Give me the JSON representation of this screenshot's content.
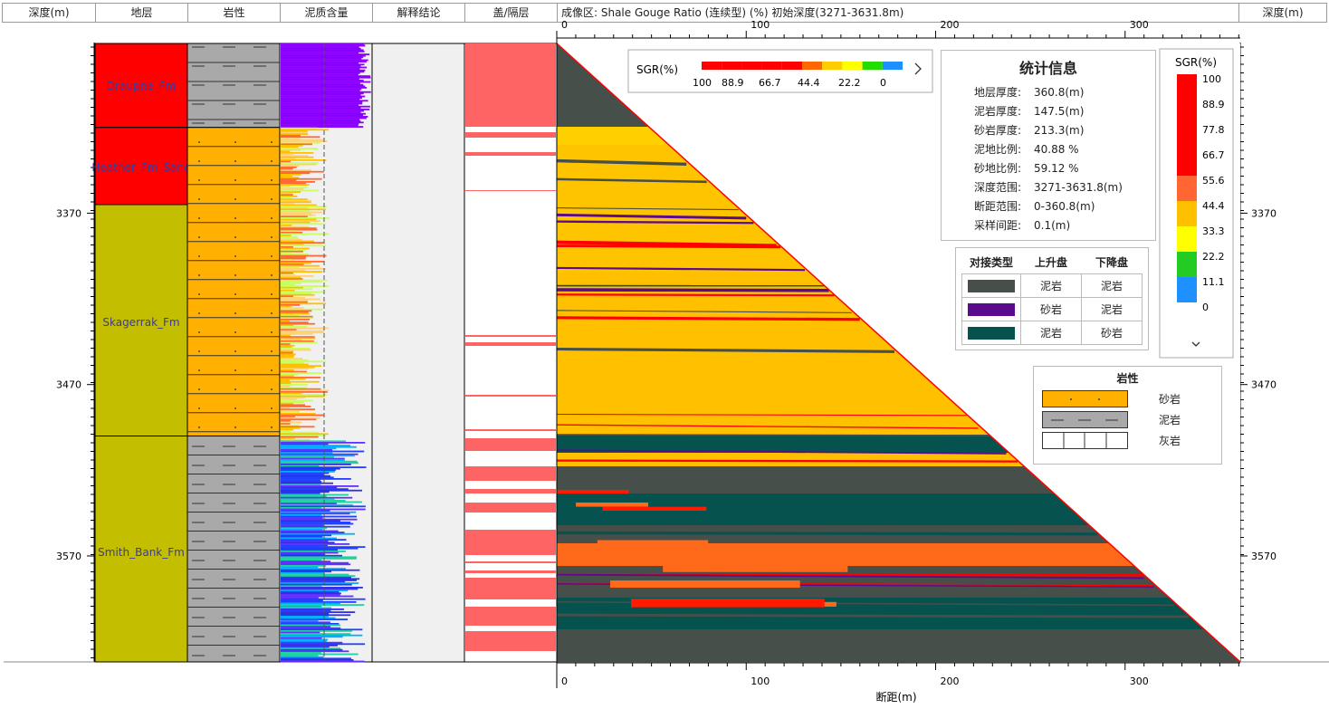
{
  "headers": {
    "depth_left": "深度(m)",
    "strata": "地层",
    "lithology": "岩性",
    "shale_content": "泥质含量",
    "interpretation": "解释结论",
    "seal": "盖/隔层",
    "image_title": "成像区: Shale Gouge Ratio (连续型) (%)  初始深度(3271-3631.8m)",
    "depth_right": "深度(m)"
  },
  "depth_ticks": [
    "3370",
    "3470",
    "3570"
  ],
  "formations": [
    {
      "name": "Draupne_Fm",
      "top": 3271,
      "bottom": 3320,
      "color": "#ff0000"
    },
    {
      "name": "Heather_Fm_Sand",
      "top": 3320,
      "bottom": 3365,
      "color": "#ff0000"
    },
    {
      "name": "Skagerrak_Fm",
      "top": 3365,
      "bottom": 3500,
      "color": "#c3be00"
    },
    {
      "name": "Smith_Bank_Fm",
      "top": 3500,
      "bottom": 3631.8,
      "color": "#c3be00"
    }
  ],
  "chart_data": {
    "type": "heatmap",
    "title": "成像区: Shale Gouge Ratio (连续型) (%)  初始深度(3271-3631.8m)",
    "xlabel": "断距(m)",
    "ylabel": "深度(m)",
    "x_ticks": [
      0,
      100,
      200,
      300
    ],
    "xlim": [
      0,
      360.8
    ],
    "ylim": [
      3271,
      3631.8
    ],
    "top_scale": {
      "label": "SGR(%)",
      "ticks": [
        "100",
        "88.9",
        "66.7",
        "44.4",
        "22.2",
        "0"
      ],
      "colors": [
        "#ff0000",
        "#ff0000",
        "#ff0000",
        "#ff0000",
        "#ff0000",
        "#ff6600",
        "#ffcc00",
        "#ffff00",
        "#22dd00",
        "#1e8fff"
      ]
    },
    "vertical_legend": {
      "label": "SGR(%)",
      "ticks": [
        "100",
        "88.9",
        "77.8",
        "66.7",
        "55.6",
        "44.4",
        "33.3",
        "22.2",
        "11.1",
        "0"
      ],
      "colors": [
        "#ff0000",
        "#ff0000",
        "#ff0000",
        "#ff0000",
        "#ff0000",
        "#ff6633",
        "#ffc000",
        "#ffff00",
        "#22cc22",
        "#1e90ff"
      ]
    },
    "stats": {
      "title": "统计信息",
      "rows": [
        {
          "k": "地层厚度:",
          "v": "360.8(m)"
        },
        {
          "k": "泥岩厚度:",
          "v": "147.5(m)"
        },
        {
          "k": "砂岩厚度:",
          "v": "213.3(m)"
        },
        {
          "k": "泥地比例:",
          "v": "40.88 %"
        },
        {
          "k": "砂地比例:",
          "v": "59.12 %"
        },
        {
          "k": "深度范围:",
          "v": "3271-3631.8(m)"
        },
        {
          "k": "断距范围:",
          "v": "0-360.8(m)"
        },
        {
          "k": "采样间距:",
          "v": "0.1(m)"
        }
      ]
    },
    "juxtaposition": {
      "headers": [
        "对接类型",
        "上升盘",
        "下降盘"
      ],
      "rows": [
        {
          "color": "#474f4a",
          "up": "泥岩",
          "down": "泥岩"
        },
        {
          "color": "#5a0a8c",
          "up": "砂岩",
          "down": "泥岩"
        },
        {
          "color": "#05524f",
          "up": "泥岩",
          "down": "砂岩"
        }
      ]
    },
    "lithology_legend": {
      "title": "岩性",
      "rows": [
        {
          "kind": "sand",
          "label": "砂岩"
        },
        {
          "kind": "shale",
          "label": "泥岩"
        },
        {
          "kind": "lime",
          "label": "灰岩"
        }
      ]
    }
  }
}
